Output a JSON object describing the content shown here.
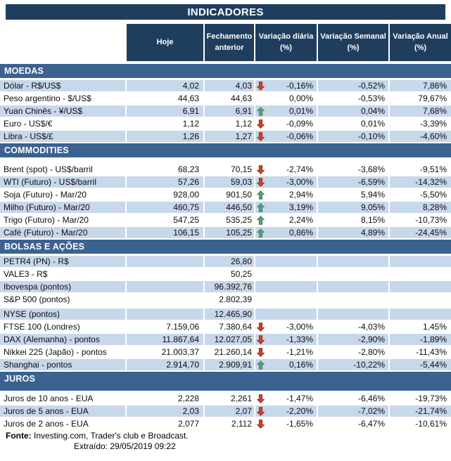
{
  "title": "INDICADORES",
  "columns": {
    "hoje": "Hoje",
    "fechamento": "Fechamento anterior",
    "var_diaria": "Variação diária (%)",
    "var_semanal": "Variação Semanal (%)",
    "var_anual": "Variação Anual (%)"
  },
  "colors": {
    "navy": "#1f3e5e",
    "section_blue": "#3b6291",
    "row_blue": "#c7d8ea",
    "row_white": "#ffffff",
    "arrow_up_fill": "#55a06b",
    "arrow_up_stroke": "#4b8377",
    "arrow_down_fill": "#c8432a",
    "arrow_down_stroke": "#93321f"
  },
  "sections": [
    {
      "name": "MOEDAS",
      "tall": false,
      "gap_after_header": false,
      "rows": [
        {
          "label": "Dólar - R$/US$",
          "hoje": "4,02",
          "fechamento": "4,03",
          "arrow": "down",
          "var_diaria": "-0,16%",
          "var_semanal": "-0,52%",
          "var_anual": "7,86%",
          "shade": "blue"
        },
        {
          "label": "Peso argentino - $/US$",
          "hoje": "44,63",
          "fechamento": "44,63",
          "arrow": "none",
          "var_diaria": "0,00%",
          "var_semanal": "-0,53%",
          "var_anual": "79,67%",
          "shade": "white"
        },
        {
          "label": "Yuan Chinês - ¥/US$",
          "hoje": "6,91",
          "fechamento": "6,91",
          "arrow": "up",
          "var_diaria": "0,01%",
          "var_semanal": "0,04%",
          "var_anual": "7,68%",
          "shade": "blue"
        },
        {
          "label": "Euro - US$/€",
          "hoje": "1,12",
          "fechamento": "1,12",
          "arrow": "down",
          "var_diaria": "-0,09%",
          "var_semanal": "0,01%",
          "var_anual": "-3,39%",
          "shade": "white"
        },
        {
          "label": "Libra - US$/£",
          "hoje": "1,26",
          "fechamento": "1,27",
          "arrow": "down",
          "var_diaria": "-0,06%",
          "var_semanal": "-0,10%",
          "var_anual": "-4,60%",
          "shade": "blue"
        }
      ]
    },
    {
      "name": "COMMODITIES",
      "tall": false,
      "gap_after_header": true,
      "rows": [
        {
          "label": "Brent (spot) - US$/barril",
          "hoje": "68,23",
          "fechamento": "70,15",
          "arrow": "down",
          "var_diaria": "-2,74%",
          "var_semanal": "-3,68%",
          "var_anual": "-9,51%",
          "shade": "white"
        },
        {
          "label": "WTI (Futuro) - US$/barril",
          "hoje": "57,26",
          "fechamento": "59,03",
          "arrow": "down",
          "var_diaria": "-3,00%",
          "var_semanal": "-6,59%",
          "var_anual": "-14,32%",
          "shade": "blue"
        },
        {
          "label": "Soja (Futuro) - Mar/20",
          "hoje": "928,00",
          "fechamento": "901,50",
          "arrow": "up",
          "var_diaria": "2,94%",
          "var_semanal": "5,94%",
          "var_anual": "-5,50%",
          "shade": "white"
        },
        {
          "label": "Milho (Futuro) - Mar/20",
          "hoje": "460,75",
          "fechamento": "446,50",
          "arrow": "up",
          "var_diaria": "3,19%",
          "var_semanal": "9,05%",
          "var_anual": "8,28%",
          "shade": "blue"
        },
        {
          "label": "Trigo (Futuro) - Mar/20",
          "hoje": "547,25",
          "fechamento": "535,25",
          "arrow": "up",
          "var_diaria": "2,24%",
          "var_semanal": "8,15%",
          "var_anual": "-10,73%",
          "shade": "white"
        },
        {
          "label": "Café (Futuro) - Mar/20",
          "hoje": "106,15",
          "fechamento": "105,25",
          "arrow": "up",
          "var_diaria": "0,86%",
          "var_semanal": "4,89%",
          "var_anual": "-24,45%",
          "shade": "blue"
        }
      ]
    },
    {
      "name": "BOLSAS E AÇÕES",
      "tall": false,
      "gap_after_header": false,
      "rows": [
        {
          "label": "PETR4 (PN) - R$",
          "hoje": "",
          "fechamento": "26,80",
          "arrow": "none",
          "var_diaria": "",
          "var_semanal": "",
          "var_anual": "",
          "shade": "blue"
        },
        {
          "label": "VALE3 - R$",
          "hoje": "",
          "fechamento": "50,25",
          "arrow": "none",
          "var_diaria": "",
          "var_semanal": "",
          "var_anual": "",
          "shade": "white"
        },
        {
          "label": "Ibovespa (pontos)",
          "hoje": "",
          "fechamento": "96.392,76",
          "arrow": "none",
          "var_diaria": "",
          "var_semanal": "",
          "var_anual": "",
          "shade": "blue"
        },
        {
          "label": "S&P 500 (pontos)",
          "hoje": "",
          "fechamento": "2.802,39",
          "arrow": "none",
          "var_diaria": "",
          "var_semanal": "",
          "var_anual": "",
          "shade": "white"
        },
        {
          "label": "NYSE (pontos)",
          "hoje": "",
          "fechamento": "12.465,90",
          "arrow": "none",
          "var_diaria": "",
          "var_semanal": "",
          "var_anual": "",
          "shade": "blue",
          "gap_before": true
        },
        {
          "label": "FTSE 100 (Londres)",
          "hoje": "7.159,06",
          "fechamento": "7.380,64",
          "arrow": "down",
          "var_diaria": "-3,00%",
          "var_semanal": "-4,03%",
          "var_anual": "1,45%",
          "shade": "white"
        },
        {
          "label": "DAX (Alemanha) - pontos",
          "hoje": "11.867,64",
          "fechamento": "12.027,05",
          "arrow": "down",
          "var_diaria": "-1,33%",
          "var_semanal": "-2,90%",
          "var_anual": "-1,89%",
          "shade": "blue"
        },
        {
          "label": "Nikkei 225 (Japão) - pontos",
          "hoje": "21.003,37",
          "fechamento": "21.260,14",
          "arrow": "down",
          "var_diaria": "-1,21%",
          "var_semanal": "-2,80%",
          "var_anual": "-11,43%",
          "shade": "white"
        },
        {
          "label": "Shanghai - pontos",
          "hoje": "2.914,70",
          "fechamento": "2.909,91",
          "arrow": "up",
          "var_diaria": "0,16%",
          "var_semanal": "-10,22%",
          "var_anual": "-5,44%",
          "shade": "blue"
        }
      ]
    },
    {
      "name": "JUROS",
      "tall": true,
      "gap_after_header": false,
      "rows": [
        {
          "label": "Juros de 10 anos - EUA",
          "hoje": "2,228",
          "fechamento": "2,261",
          "arrow": "down",
          "var_diaria": "-1,47%",
          "var_semanal": "-6,46%",
          "var_anual": "-19,73%",
          "shade": "white"
        },
        {
          "label": "Juros de 5 anos - EUA",
          "hoje": "2,03",
          "fechamento": "2,07",
          "arrow": "down",
          "var_diaria": "-2,20%",
          "var_semanal": "-7,02%",
          "var_anual": "-21,74%",
          "shade": "blue"
        },
        {
          "label": "Juros de 2 anos - EUA",
          "hoje": "2,077",
          "fechamento": "2,112",
          "arrow": "down",
          "var_diaria": "-1,65%",
          "var_semanal": "-6,47%",
          "var_anual": "-10,61%",
          "shade": "white"
        }
      ]
    }
  ],
  "footer": {
    "fonte_label": "Fonte:",
    "fonte_text": " Investing.com, Trader's club e Broadcast.",
    "extraido": "Extraído: 29/05/2019 09:22"
  }
}
